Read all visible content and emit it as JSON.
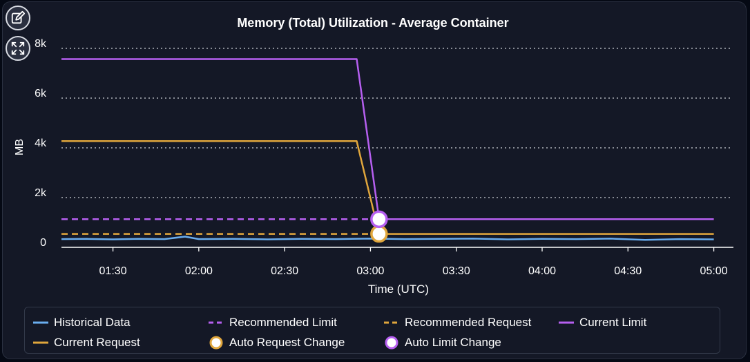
{
  "colors": {
    "historical": "#6aaef0",
    "limit": "#b65ff0",
    "request": "#e0a63c",
    "grid": "#cfd3da",
    "marker_fill": "#ffffff"
  },
  "toolbar": {
    "edit_icon": "edit-pencil-icon",
    "expand_icon": "expand-arrows-icon"
  },
  "chart_data": {
    "type": "line",
    "title": "Memory (Total) Utilization - Average Container",
    "xlabel": "Time (UTC)",
    "ylabel": "MB",
    "x_range_minutes": [
      1.2,
      5.05
    ],
    "ylim": [
      0,
      8000
    ],
    "y_ticks": [
      {
        "value": 0,
        "label": "0"
      },
      {
        "value": 2000,
        "label": "2k"
      },
      {
        "value": 4000,
        "label": "4k"
      },
      {
        "value": 6000,
        "label": "6k"
      },
      {
        "value": 8000,
        "label": "8k"
      }
    ],
    "x_ticks": [
      {
        "value": 1.5,
        "label": "01:30"
      },
      {
        "value": 2.0,
        "label": "02:00"
      },
      {
        "value": 2.5,
        "label": "02:30"
      },
      {
        "value": 3.0,
        "label": "03:00"
      },
      {
        "value": 3.5,
        "label": "03:30"
      },
      {
        "value": 4.0,
        "label": "04:00"
      },
      {
        "value": 4.5,
        "label": "04:30"
      },
      {
        "value": 5.0,
        "label": "05:00"
      }
    ],
    "grid": "horizontal dotted",
    "legend_position": "bottom",
    "series": [
      {
        "key": "historical",
        "name": "Historical Data",
        "style": "line",
        "color": "#6aaef0",
        "x": [
          1.2,
          1.35,
          1.5,
          1.65,
          1.8,
          1.92,
          2.0,
          2.2,
          2.4,
          2.6,
          2.8,
          3.0,
          3.2,
          3.4,
          3.6,
          3.8,
          4.0,
          4.2,
          4.4,
          4.6,
          4.8,
          5.0
        ],
        "y": [
          330,
          340,
          320,
          340,
          330,
          430,
          330,
          340,
          320,
          340,
          330,
          350,
          330,
          340,
          350,
          320,
          340,
          330,
          350,
          300,
          330,
          320
        ]
      },
      {
        "key": "rec_limit",
        "name": "Recommended Limit",
        "style": "dashed",
        "color": "#b65ff0",
        "x": [
          1.2,
          3.05
        ],
        "y": [
          1130,
          1130
        ]
      },
      {
        "key": "rec_request",
        "name": "Recommended Request",
        "style": "dashed",
        "color": "#e0a63c",
        "x": [
          1.2,
          3.05
        ],
        "y": [
          540,
          540
        ]
      },
      {
        "key": "cur_limit",
        "name": "Current Limit",
        "style": "line",
        "color": "#b65ff0",
        "x": [
          1.2,
          2.92,
          3.05,
          5.0
        ],
        "y": [
          7570,
          7570,
          1130,
          1130
        ]
      },
      {
        "key": "cur_request",
        "name": "Current Request",
        "style": "line",
        "color": "#e0a63c",
        "x": [
          1.2,
          2.92,
          3.05,
          5.0
        ],
        "y": [
          4270,
          4270,
          540,
          540
        ]
      },
      {
        "key": "auto_request",
        "name": "Auto Request Change",
        "style": "marker",
        "color": "#e0a63c",
        "x": [
          3.05
        ],
        "y": [
          540
        ]
      },
      {
        "key": "auto_limit",
        "name": "Auto Limit Change",
        "style": "marker",
        "color": "#b65ff0",
        "x": [
          3.05
        ],
        "y": [
          1130
        ]
      }
    ]
  },
  "legend": [
    {
      "key": "historical",
      "label": "Historical Data"
    },
    {
      "key": "rec_limit",
      "label": "Recommended Limit"
    },
    {
      "key": "rec_request",
      "label": "Recommended Request"
    },
    {
      "key": "cur_limit",
      "label": "Current Limit"
    },
    {
      "key": "cur_request",
      "label": "Current Request"
    },
    {
      "key": "auto_request",
      "label": "Auto Request Change"
    },
    {
      "key": "auto_limit",
      "label": "Auto Limit Change"
    }
  ]
}
